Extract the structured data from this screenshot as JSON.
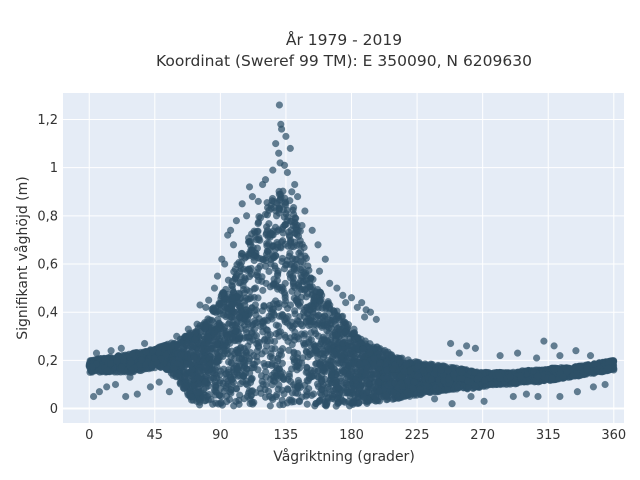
{
  "chart_data": {
    "type": "scatter",
    "title": "År 1979 - 2019",
    "subtitle": "Koordinat (Sweref 99 TM): E 350090, N 6209630",
    "xlabel": "Vågriktning (grader)",
    "ylabel": "Signifikant våghöjd (m)",
    "xlim": [
      -18,
      367
    ],
    "ylim": [
      -0.06,
      1.31
    ],
    "x_ticks": [
      0,
      45,
      90,
      135,
      180,
      225,
      270,
      315,
      360
    ],
    "x_tick_labels": [
      "0",
      "45",
      "90",
      "135",
      "180",
      "225",
      "270",
      "315",
      "360"
    ],
    "y_ticks": [
      0,
      0.2,
      0.4,
      0.6,
      0.8,
      1.0,
      1.2
    ],
    "y_tick_labels": [
      "0",
      "0,2",
      "0,4",
      "0,6",
      "0,8",
      "1",
      "1,2"
    ],
    "grid": true,
    "legend": "none",
    "colors": {
      "plot_background": "#e5ecf6",
      "grid": "#ffffff",
      "marker": "#2e5168"
    },
    "envelope": {
      "x": [
        0,
        10,
        20,
        30,
        40,
        50,
        60,
        65,
        70,
        75,
        80,
        85,
        90,
        95,
        100,
        105,
        110,
        115,
        120,
        125,
        130,
        135,
        140,
        145,
        150,
        155,
        160,
        165,
        170,
        175,
        180,
        185,
        190,
        200,
        210,
        220,
        230,
        240,
        250,
        260,
        270,
        280,
        290,
        300,
        310,
        320,
        330,
        340,
        350,
        360
      ],
      "upper": [
        0.2,
        0.21,
        0.22,
        0.23,
        0.24,
        0.26,
        0.28,
        0.3,
        0.32,
        0.34,
        0.37,
        0.42,
        0.47,
        0.53,
        0.58,
        0.65,
        0.72,
        0.78,
        0.84,
        0.88,
        0.91,
        0.9,
        0.85,
        0.74,
        0.62,
        0.53,
        0.47,
        0.44,
        0.41,
        0.38,
        0.34,
        0.31,
        0.28,
        0.25,
        0.22,
        0.2,
        0.19,
        0.18,
        0.17,
        0.16,
        0.15,
        0.15,
        0.15,
        0.16,
        0.16,
        0.17,
        0.17,
        0.18,
        0.19,
        0.2
      ],
      "lower": [
        0.15,
        0.15,
        0.15,
        0.15,
        0.16,
        0.17,
        0.12,
        0.08,
        0.03,
        0.01,
        0.01,
        0.01,
        0.01,
        0.01,
        0.01,
        0.01,
        0.01,
        0.01,
        0.01,
        0.01,
        0.01,
        0.01,
        0.01,
        0.01,
        0.01,
        0.01,
        0.01,
        0.01,
        0.01,
        0.01,
        0.01,
        0.02,
        0.02,
        0.03,
        0.04,
        0.05,
        0.06,
        0.07,
        0.08,
        0.08,
        0.09,
        0.1,
        0.1,
        0.11,
        0.11,
        0.12,
        0.13,
        0.14,
        0.15,
        0.16
      ]
    },
    "outliers": [
      [
        130.5,
        1.26
      ],
      [
        131.5,
        1.18
      ],
      [
        132,
        1.16
      ],
      [
        135,
        1.13
      ],
      [
        128,
        1.1
      ],
      [
        130,
        1.06
      ],
      [
        138,
        1.08
      ],
      [
        131,
        1.02
      ],
      [
        134,
        1.01
      ],
      [
        126,
        0.99
      ],
      [
        136,
        0.98
      ],
      [
        121,
        0.95
      ],
      [
        119,
        0.93
      ],
      [
        141,
        0.93
      ],
      [
        110,
        0.92
      ],
      [
        139,
        0.9
      ],
      [
        143,
        0.88
      ],
      [
        112,
        0.88
      ],
      [
        105,
        0.85
      ],
      [
        116,
        0.86
      ],
      [
        148,
        0.82
      ],
      [
        101,
        0.78
      ],
      [
        95,
        0.72
      ],
      [
        97,
        0.74
      ],
      [
        108,
        0.8
      ],
      [
        153,
        0.74
      ],
      [
        146,
        0.76
      ],
      [
        157,
        0.68
      ],
      [
        162,
        0.62
      ],
      [
        158,
        0.57
      ],
      [
        99,
        0.68
      ],
      [
        91,
        0.62
      ],
      [
        93,
        0.6
      ],
      [
        88,
        0.55
      ],
      [
        86,
        0.5
      ],
      [
        82,
        0.45
      ],
      [
        165,
        0.52
      ],
      [
        170,
        0.5
      ],
      [
        174,
        0.47
      ],
      [
        176,
        0.44
      ],
      [
        180,
        0.46
      ],
      [
        184,
        0.42
      ],
      [
        187,
        0.44
      ],
      [
        190,
        0.41
      ],
      [
        193,
        0.4
      ],
      [
        189,
        0.38
      ],
      [
        197,
        0.37
      ],
      [
        248,
        0.27
      ],
      [
        259,
        0.26
      ],
      [
        265,
        0.25
      ],
      [
        254,
        0.23
      ],
      [
        282,
        0.22
      ],
      [
        294,
        0.23
      ],
      [
        312,
        0.28
      ],
      [
        319,
        0.26
      ],
      [
        323,
        0.22
      ],
      [
        334,
        0.24
      ],
      [
        344,
        0.22
      ],
      [
        307,
        0.21
      ],
      [
        3,
        0.05
      ],
      [
        7,
        0.07
      ],
      [
        12,
        0.09
      ],
      [
        18,
        0.1
      ],
      [
        25,
        0.05
      ],
      [
        33,
        0.06
      ],
      [
        42,
        0.09
      ],
      [
        48,
        0.11
      ],
      [
        55,
        0.07
      ],
      [
        28,
        0.13
      ],
      [
        5,
        0.23
      ],
      [
        15,
        0.24
      ],
      [
        22,
        0.25
      ],
      [
        38,
        0.27
      ],
      [
        60,
        0.3
      ],
      [
        68,
        0.33
      ],
      [
        74,
        0.35
      ],
      [
        76,
        0.43
      ],
      [
        80,
        0.42
      ],
      [
        291,
        0.05
      ],
      [
        300,
        0.06
      ],
      [
        308,
        0.05
      ],
      [
        323,
        0.05
      ],
      [
        335,
        0.07
      ],
      [
        346,
        0.09
      ],
      [
        354,
        0.1
      ],
      [
        271,
        0.03
      ],
      [
        262,
        0.05
      ],
      [
        249,
        0.02
      ],
      [
        237,
        0.04
      ]
    ]
  }
}
